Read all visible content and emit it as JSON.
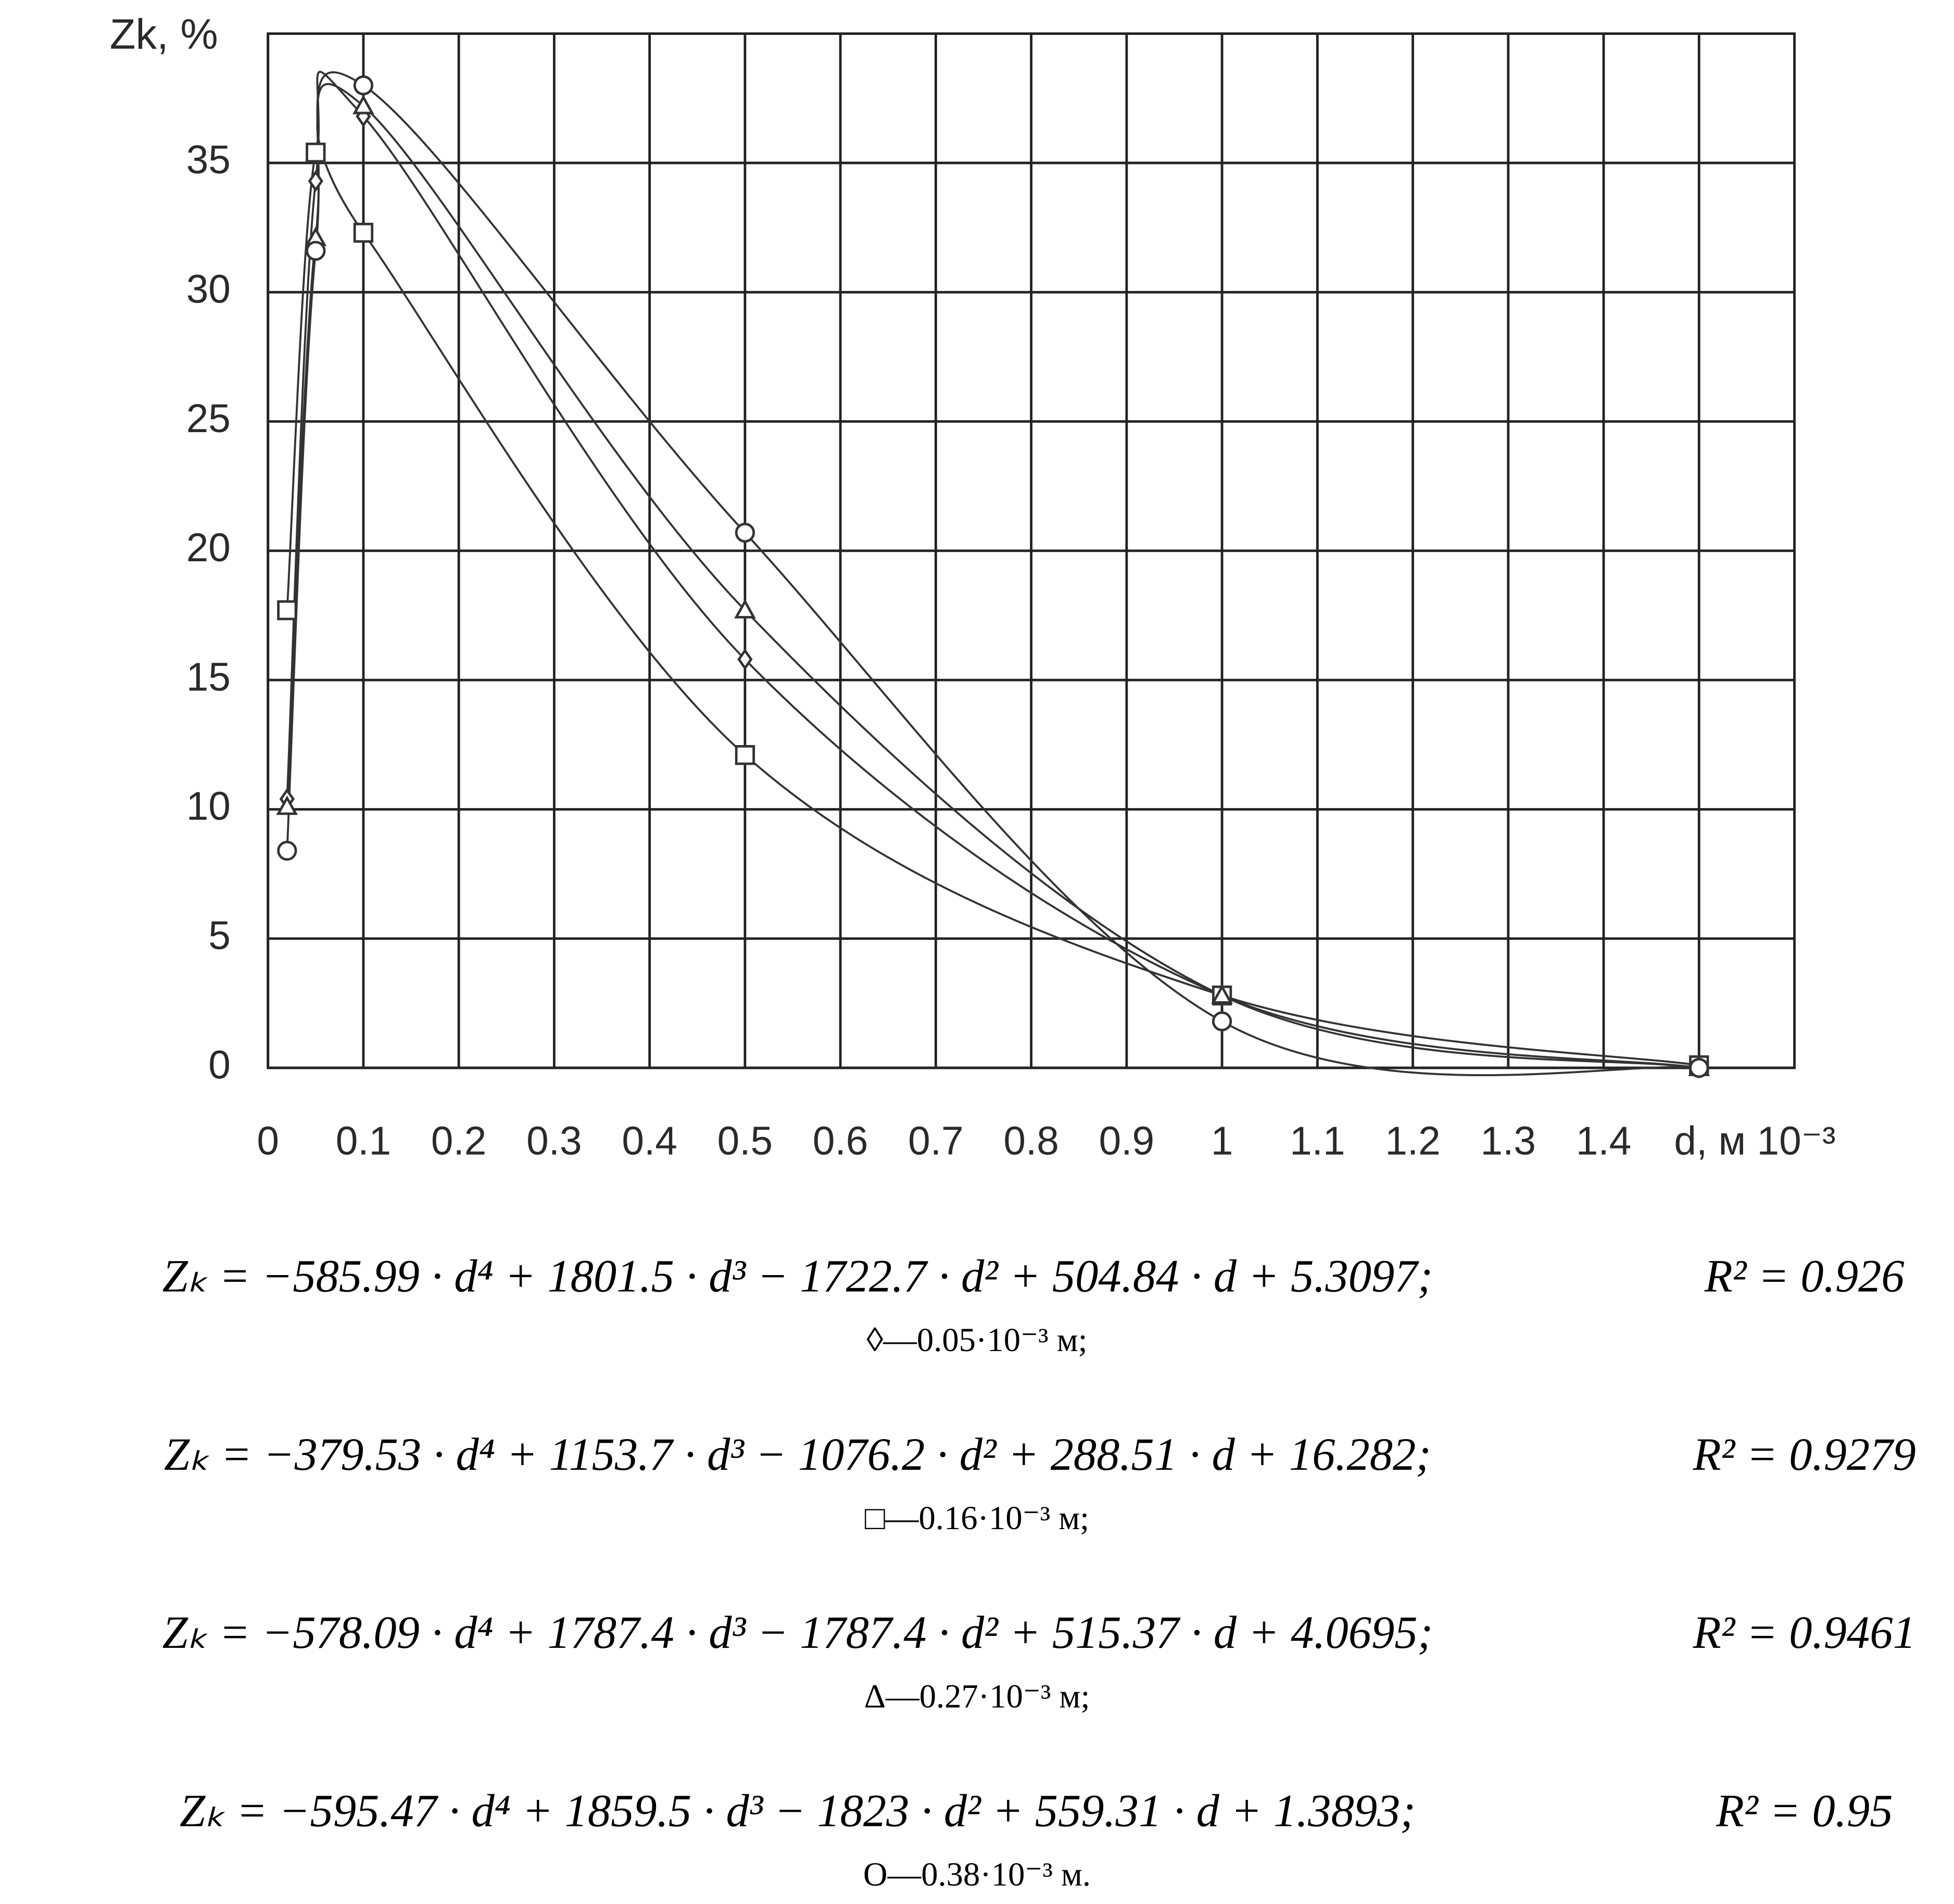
{
  "chart_data": {
    "type": "line",
    "ylabel": "Zk, %",
    "x": [
      0.02,
      0.05,
      0.1,
      0.5,
      1,
      1.5
    ],
    "xlim": [
      0,
      1.6
    ],
    "xticks": [
      0,
      0.1,
      0.2,
      0.3,
      0.4,
      0.5,
      0.6,
      0.7,
      0.8,
      0.9,
      1,
      1.1,
      1.2,
      1.3,
      1.4,
      {
        "value": 1.5,
        "label": "d, м 10⁻³"
      }
    ],
    "ylim": [
      0,
      40
    ],
    "yticks": [
      0,
      5,
      10,
      15,
      20,
      25,
      30,
      35
    ],
    "grid": true,
    "series": [
      {
        "name": "◊—0.05·10⁻³ м;",
        "marker": "diamond",
        "color": "#333333",
        "values": [
          10.4,
          34.3,
          36.8,
          15.8,
          2.8,
          0
        ]
      },
      {
        "name": "□—0.16·10⁻³ м;",
        "marker": "square",
        "color": "#333333",
        "values": [
          17.7,
          35.4,
          32.3,
          12.1,
          2.8,
          0.1
        ]
      },
      {
        "name": "Δ—0.27·10⁻³ м;",
        "marker": "triangle",
        "color": "#333333",
        "values": [
          10.1,
          32.1,
          37.2,
          17.7,
          2.8,
          0
        ]
      },
      {
        "name": "O—0.38·10⁻³ м.",
        "marker": "circle",
        "color": "#333333",
        "values": [
          8.4,
          31.6,
          38.0,
          20.7,
          1.8,
          0
        ]
      }
    ],
    "equations": [
      {
        "formula": "Zₖ = −585.99 · d⁴ + 1801.5 · d³ − 1722.7 · d² + 504.84 · d + 5.3097;",
        "r2": "R² = 0.926"
      },
      {
        "formula": "Zₖ = −379.53 · d⁴ + 1153.7 · d³ − 1076.2 · d² + 288.51 · d + 16.282;",
        "r2": "R² = 0.9279"
      },
      {
        "formula": "Zₖ = −578.09 · d⁴ + 1787.4 · d³ − 1787.4 · d² + 515.37 · d + 4.0695;",
        "r2": "R² = 0.9461"
      },
      {
        "formula": "Zₖ = −595.47 · d⁴ + 1859.5 · d³ − 1823 · d² + 559.31 · d + 1.3893;",
        "r2": "R² = 0.95"
      }
    ]
  }
}
